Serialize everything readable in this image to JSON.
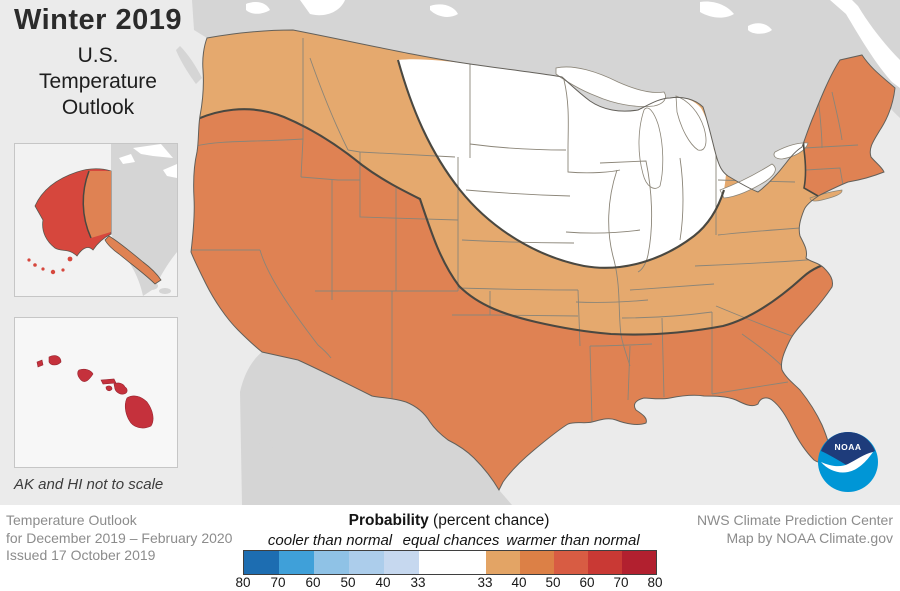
{
  "title": {
    "heading": "Winter 2019",
    "subtitle_lines": [
      "U.S.",
      "Temperature",
      "Outlook"
    ]
  },
  "insets": {
    "note": "AK and HI not to scale"
  },
  "footer": {
    "left_lines": [
      "Temperature Outlook",
      "for December 2019 – February 2020",
      "Issued 17 October 2019"
    ],
    "right_lines": [
      "NWS Climate Prediction Center",
      "Map by NOAA Climate.gov"
    ]
  },
  "legend": {
    "title": "Probability",
    "title_suffix": "(percent chance)",
    "categories": [
      {
        "label": "cooler than normal"
      },
      {
        "label": "equal chances"
      },
      {
        "label": "warmer than normal"
      }
    ],
    "cool_ticks": [
      "80",
      "70",
      "60",
      "50",
      "40",
      "33"
    ],
    "warm_ticks": [
      "33",
      "40",
      "50",
      "60",
      "70",
      "80"
    ],
    "cool_colors": [
      "#1D6DB1",
      "#3FA0D9",
      "#8FC2E6",
      "#ACCDEB",
      "#C6D8EF"
    ],
    "neutral_color": "#FFFFFF",
    "warm_colors": [
      "#E3A465",
      "#DC8046",
      "#D85C43",
      "#C93934",
      "#B2202F"
    ]
  },
  "logo": {
    "text": "NOAA"
  },
  "colors": {
    "page_bg": "#FFFFFF",
    "ocean": "#EBEBEB",
    "neighbor_land": "#D5D5D5",
    "equal_chances": "#FFFFFF",
    "warm_33_40": "#E5A96E",
    "warm_40_50": "#DF8253",
    "alaska_red": "#D6473D",
    "hawaii_red": "#C5313C",
    "contour": "#4A4841",
    "state_line": "#8B8578",
    "coast_line": "#63605A",
    "inset_bg": "#F2F2F2",
    "inset_border": "#C6C6C6",
    "title_text": "#2F2F2F",
    "muted_text": "#8C8C8C",
    "logo_navy": "#1E3C7B",
    "logo_blue": "#0096D6"
  },
  "chart_data": {
    "type": "choropleth_map",
    "title": "Winter 2019 U.S. Temperature Outlook",
    "period": "December 2019 - February 2020",
    "issued": "17 October 2019",
    "unit": "percent chance",
    "scale_breaks": [
      33,
      40,
      50,
      60,
      70,
      80
    ],
    "regions": [
      {
        "area": "Northern Plains and Upper Midwest (MT east through ND, SD, MN, WI, MI, IA, IL, IN, OH, MO)",
        "category": "equal chances",
        "value": "33"
      },
      {
        "area": "Pacific Northwest, northern Rockies, central Plains, Ohio Valley, Mid-Atlantic band",
        "category": "warmer than normal",
        "value": "33-40"
      },
      {
        "area": "California, Southwest, Texas, Gulf Coast, Southeast coast, New England",
        "category": "warmer than normal",
        "value": "40-50"
      },
      {
        "area": "Alaska main body",
        "category": "warmer than normal",
        "value": "50-70"
      },
      {
        "area": "Southeast Alaska",
        "category": "warmer than normal",
        "value": "40-50"
      },
      {
        "area": "Hawaii",
        "category": "warmer than normal",
        "value": "60-70"
      }
    ]
  }
}
